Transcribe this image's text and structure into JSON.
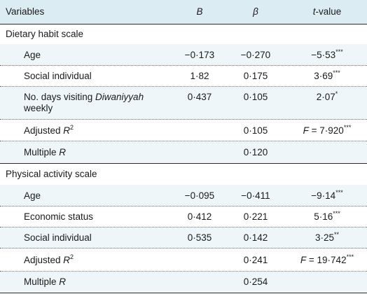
{
  "columns": {
    "variables": "Variables",
    "b": "B",
    "beta": "β",
    "t_italic": "t",
    "t_rest": "-value"
  },
  "dietary": {
    "heading": "Dietary habit scale",
    "rows": [
      {
        "label": "Age",
        "b": "−0·173",
        "beta": "−0·270",
        "t": "−5·53",
        "stars": "***"
      },
      {
        "label": "Social individual",
        "b": "1·82",
        "beta": "0·175",
        "t": "3·69",
        "stars": "***"
      },
      {
        "label_line1_a": "No. days visiting ",
        "label_line1_b": "Diwaniyyah",
        "label_line2": "weekly",
        "b": "0·437",
        "beta": "0·105",
        "t": "2·07",
        "stars": "*"
      }
    ],
    "adjusted_r2": {
      "label": "Adjusted ",
      "r": "R",
      "sup": "2",
      "beta": "0·105",
      "f_label": "F",
      "f_value": " = 7·920",
      "stars": "***"
    },
    "multiple_r": {
      "label": "Multiple ",
      "r": "R",
      "beta": "0·120"
    }
  },
  "physical": {
    "heading": "Physical activity scale",
    "rows": [
      {
        "label": "Age",
        "b": "−0·095",
        "beta": "−0·411",
        "t": "−9·14",
        "stars": "***"
      },
      {
        "label": "Economic status",
        "b": "0·412",
        "beta": "0·221",
        "t": "5·16",
        "stars": "***"
      },
      {
        "label": "Social individual",
        "b": "0·535",
        "beta": "0·142",
        "t": "3·25",
        "stars": "**"
      }
    ],
    "adjusted_r2": {
      "label": "Adjusted ",
      "r": "R",
      "sup": "2",
      "beta": "0·241",
      "f_label": "F",
      "f_value": " = 19·742",
      "stars": "***"
    },
    "multiple_r": {
      "label": "Multiple ",
      "r": "R",
      "beta": "0·254"
    }
  }
}
